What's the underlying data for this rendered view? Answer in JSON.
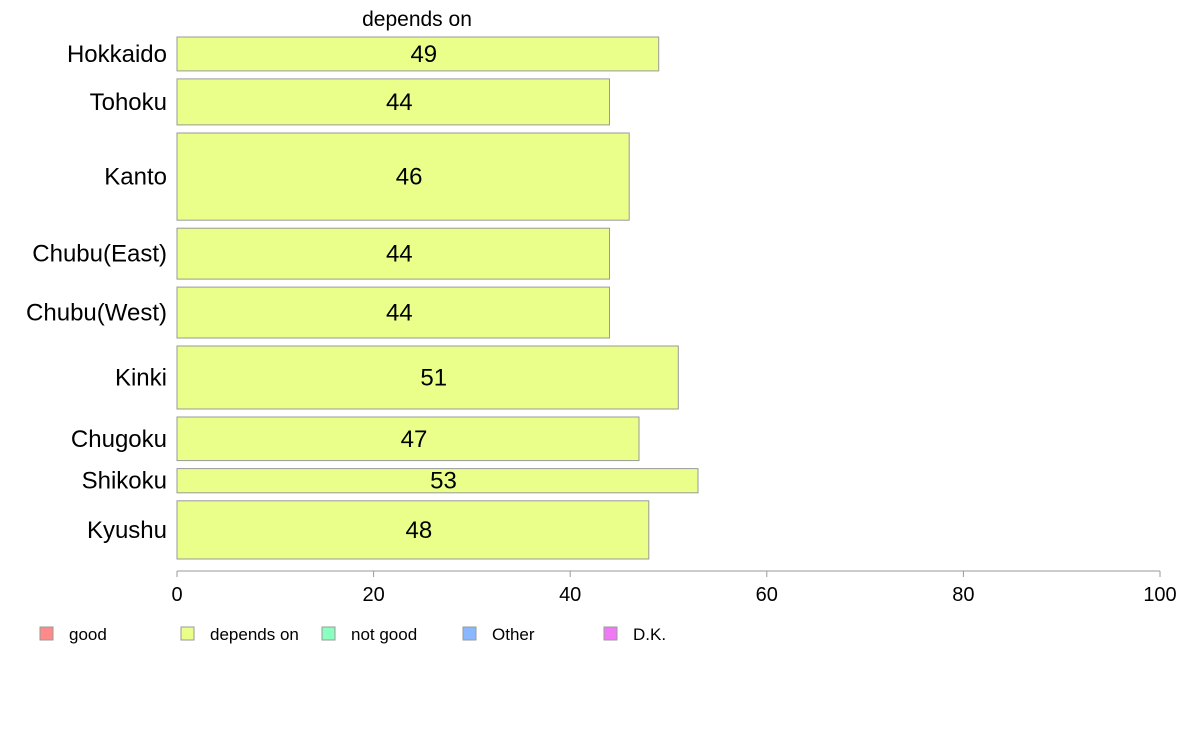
{
  "chart_data": {
    "type": "bar",
    "orientation": "horizontal",
    "title": "depends on",
    "categories": [
      "Hokkaido",
      "Tohoku",
      "Kanto",
      "Chubu(East)",
      "Chubu(West)",
      "Kinki",
      "Chugoku",
      "Shikoku",
      "Kyushu"
    ],
    "values": [
      49,
      44,
      46,
      44,
      44,
      51,
      47,
      53,
      48
    ],
    "value_labels": [
      "49",
      "44",
      "46",
      "44",
      "44",
      "51",
      "47",
      "53",
      "48"
    ],
    "bar_weights": [
      28,
      38,
      72,
      42,
      42,
      52,
      36,
      20,
      48
    ],
    "xlim": [
      0,
      100
    ],
    "xticks": [
      0,
      20,
      40,
      60,
      80,
      100
    ],
    "xtick_labels": [
      "0",
      "20",
      "40",
      "60",
      "80",
      "100"
    ],
    "bar_color": "#eaff8a",
    "bar_edge_color": "#9a9a9a",
    "grid": false,
    "legend_position": "bottom-left",
    "legend": [
      {
        "label": "good",
        "color": "#ff8a8a"
      },
      {
        "label": "depends on",
        "color": "#eaff8a"
      },
      {
        "label": "not good",
        "color": "#8affc0"
      },
      {
        "label": "Other",
        "color": "#8ab8ff"
      },
      {
        "label": "D.K.",
        "color": "#f07af5"
      }
    ]
  }
}
